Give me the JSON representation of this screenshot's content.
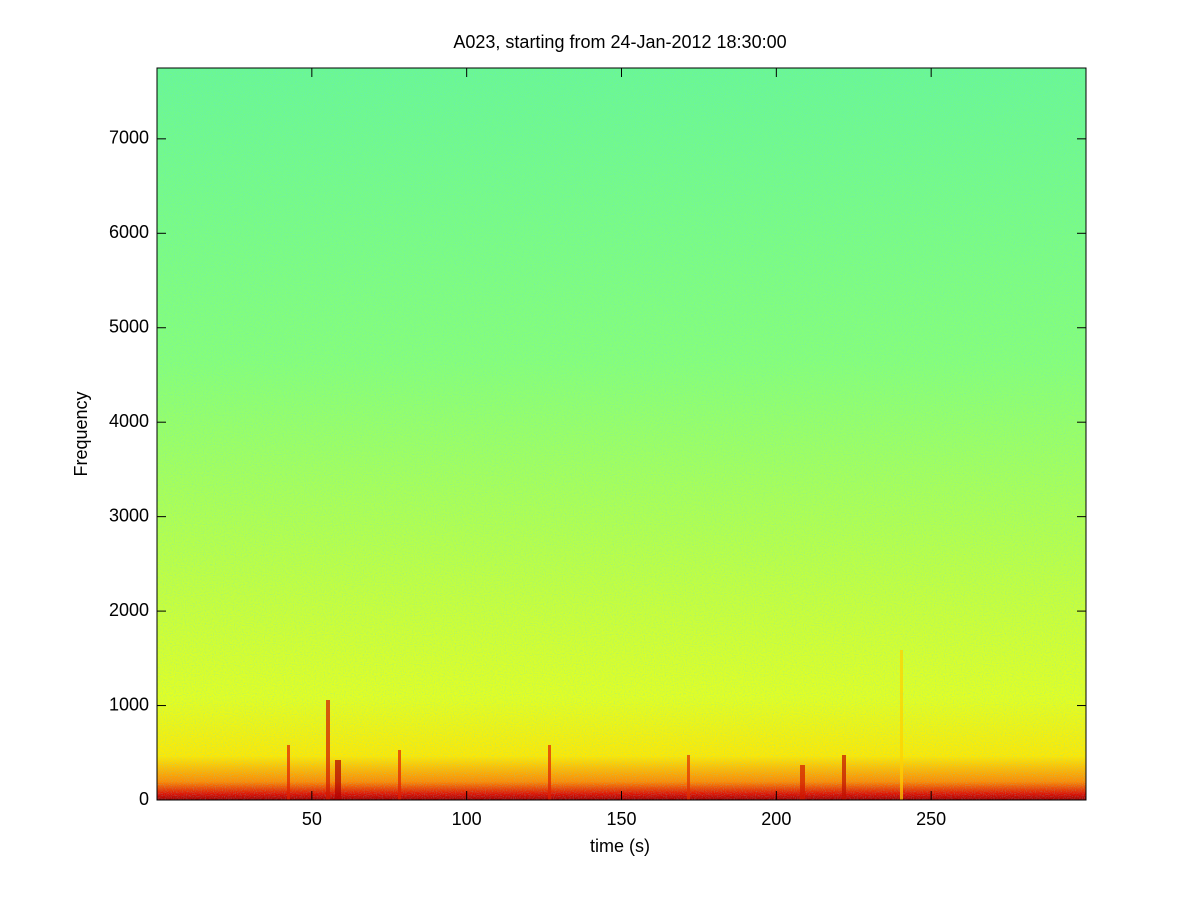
{
  "chart_data": {
    "type": "spectrogram",
    "title": "A023, starting from 24-Jan-2012 18:30:00",
    "x_label": "time (s)",
    "y_label": "Frequency",
    "xlim": [
      0,
      300
    ],
    "ylim": [
      0,
      7750
    ],
    "xticks": [
      50,
      100,
      150,
      200,
      250
    ],
    "yticks": [
      0,
      1000,
      2000,
      3000,
      4000,
      5000,
      6000,
      7000
    ]
  }
}
